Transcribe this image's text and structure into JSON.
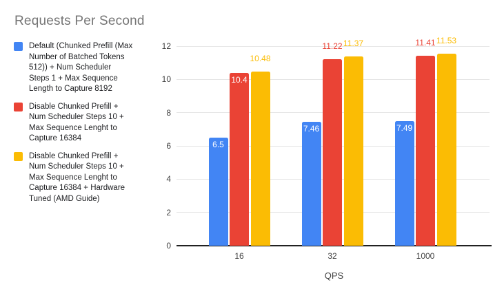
{
  "colors": {
    "background": "#ffffff",
    "title_text": "#757575",
    "legend_text": "#202124",
    "axis_text": "#424242",
    "gridline": "#e6e6e6",
    "baseline": "#212121",
    "inside_label": "#ffffff"
  },
  "chart_data": {
    "type": "bar",
    "title": "Requests Per Second",
    "xlabel": "QPS",
    "ylabel": "",
    "categories": [
      "16",
      "32",
      "1000"
    ],
    "ylim": [
      0,
      12
    ],
    "yticks": [
      0,
      2,
      4,
      6,
      8,
      10,
      12
    ],
    "grid": true,
    "legend_position": "left",
    "series": [
      {
        "name": "Default (Chunked Prefill (Max Number of Batched Tokens 512)) + Num Scheduler Steps 1 + Max Sequence Length to Capture 8192",
        "name_lines": [
          "Default (Chunked Prefill (Max",
          "Number of Batched Tokens",
          "512)) + Num Scheduler",
          "Steps 1 + Max Sequence",
          "Length to Capture 8192"
        ],
        "color": "#4285F4",
        "values": [
          6.5,
          7.46,
          7.49
        ],
        "data_labels": [
          "6.5",
          "7.46",
          "7.49"
        ],
        "label_placement": [
          "inside",
          "inside",
          "inside"
        ]
      },
      {
        "name": "Disable Chunked Prefill + Num Scheduler Steps 10 + Max Sequence Lenght to Capture 16384",
        "name_lines": [
          "Disable Chunked Prefill +",
          "Num Scheduler Steps 10 +",
          "Max Sequence Lenght to",
          "Capture 16384"
        ],
        "color": "#EA4335",
        "values": [
          10.4,
          11.22,
          11.41
        ],
        "data_labels": [
          "10.4",
          "11.22",
          "11.41"
        ],
        "label_placement": [
          "inside",
          "above",
          "above"
        ]
      },
      {
        "name": "Disable Chunked Prefill + Num Scheduler Steps 10 + Max Sequence Lenght to Capture 16384 + Hardware Tuned (AMD Guide)",
        "name_lines": [
          "Disable Chunked Prefill +",
          "Num Scheduler Steps 10 +",
          "Max Sequence Lenght to",
          "Capture 16384 + Hardware",
          "Tuned (AMD Guide)"
        ],
        "color": "#FBBC04",
        "values": [
          10.48,
          11.37,
          11.53
        ],
        "data_labels": [
          "10.48",
          "11.37",
          "11.53"
        ],
        "label_placement": [
          "above",
          "above",
          "above"
        ]
      }
    ]
  }
}
